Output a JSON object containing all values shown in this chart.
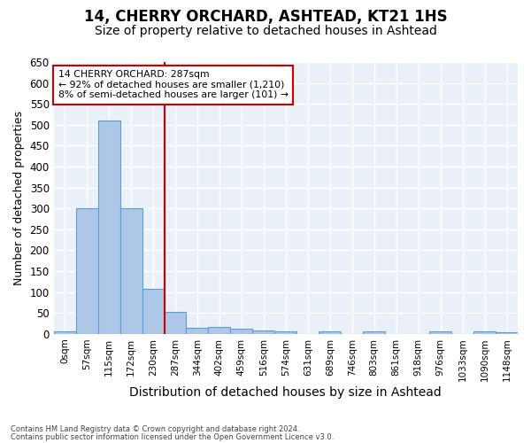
{
  "title1": "14, CHERRY ORCHARD, ASHTEAD, KT21 1HS",
  "title2": "Size of property relative to detached houses in Ashtead",
  "xlabel": "Distribution of detached houses by size in Ashtead",
  "ylabel": "Number of detached properties",
  "footer1": "Contains HM Land Registry data © Crown copyright and database right 2024.",
  "footer2": "Contains public sector information licensed under the Open Government Licence v3.0.",
  "bin_labels": [
    "0sqm",
    "57sqm",
    "115sqm",
    "172sqm",
    "230sqm",
    "287sqm",
    "344sqm",
    "402sqm",
    "459sqm",
    "516sqm",
    "574sqm",
    "631sqm",
    "689sqm",
    "746sqm",
    "803sqm",
    "861sqm",
    "918sqm",
    "976sqm",
    "1033sqm",
    "1090sqm",
    "1148sqm"
  ],
  "bar_values": [
    5,
    300,
    510,
    300,
    107,
    52,
    14,
    16,
    12,
    8,
    5,
    0,
    5,
    0,
    5,
    0,
    0,
    5,
    0,
    5,
    3
  ],
  "bar_color": "#aec6e8",
  "bar_edge_color": "#5a9fd4",
  "vline_index": 5,
  "vline_color": "#cc0000",
  "annotation_line1": "14 CHERRY ORCHARD: 287sqm",
  "annotation_line2": "← 92% of detached houses are smaller (1,210)",
  "annotation_line3": "8% of semi-detached houses are larger (101) →",
  "annotation_box_color": "#cc0000",
  "ylim": [
    0,
    650
  ],
  "yticks": [
    0,
    50,
    100,
    150,
    200,
    250,
    300,
    350,
    400,
    450,
    500,
    550,
    600,
    650
  ],
  "bg_color": "#eaf0f8",
  "grid_color": "#ffffff",
  "title1_fontsize": 12,
  "title2_fontsize": 10,
  "xlabel_fontsize": 10,
  "ylabel_fontsize": 9
}
